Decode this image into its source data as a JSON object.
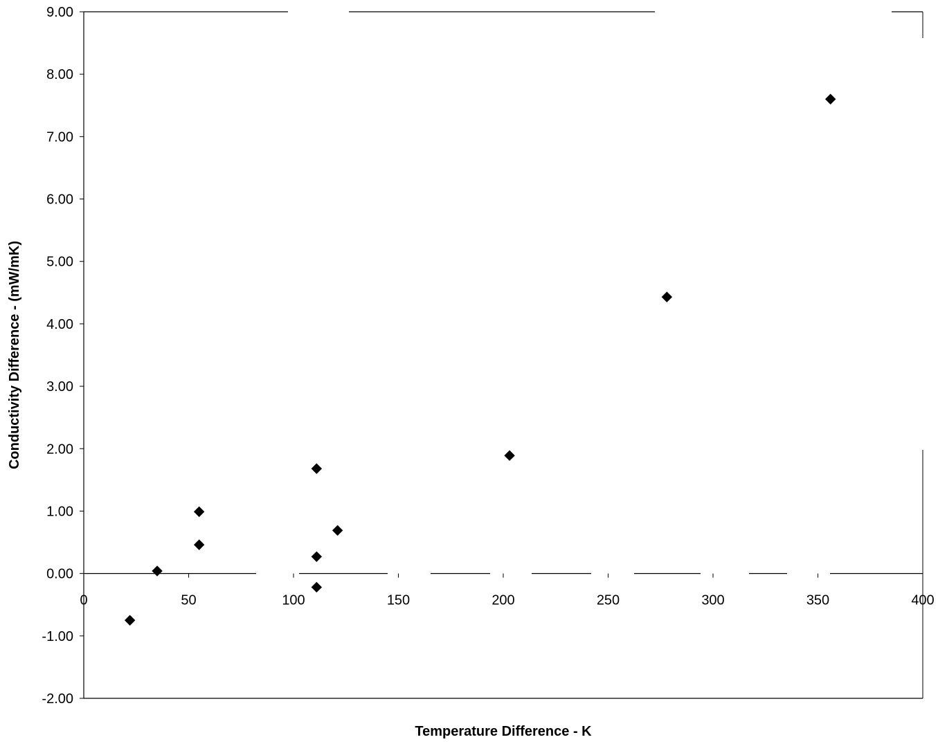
{
  "chart_data": {
    "type": "scatter",
    "title": "",
    "xlabel": "Temperature Difference - K",
    "ylabel": "Conductivity Difference - (mW/mK)",
    "xlim": [
      0,
      400
    ],
    "ylim": [
      -2.0,
      9.0
    ],
    "x_ticks": [
      "0",
      "50",
      "100",
      "150",
      "200",
      "250",
      "300",
      "350",
      "400"
    ],
    "y_ticks": [
      "9.00",
      "8.00",
      "7.00",
      "6.00",
      "5.00",
      "4.00",
      "3.00",
      "2.00",
      "1.00",
      "0.00",
      "-1.00",
      "-2.00"
    ],
    "grid": false,
    "marker": "diamond",
    "marker_color": "#000000",
    "points": [
      {
        "x": 22,
        "y": -0.75
      },
      {
        "x": 35,
        "y": 0.04
      },
      {
        "x": 55,
        "y": 0.46
      },
      {
        "x": 55,
        "y": 0.99
      },
      {
        "x": 111,
        "y": 1.68
      },
      {
        "x": 111,
        "y": 0.27
      },
      {
        "x": 111,
        "y": -0.22
      },
      {
        "x": 121,
        "y": 0.69
      },
      {
        "x": 203,
        "y": 1.89
      },
      {
        "x": 278,
        "y": 4.43
      },
      {
        "x": 356,
        "y": 7.6
      }
    ]
  }
}
